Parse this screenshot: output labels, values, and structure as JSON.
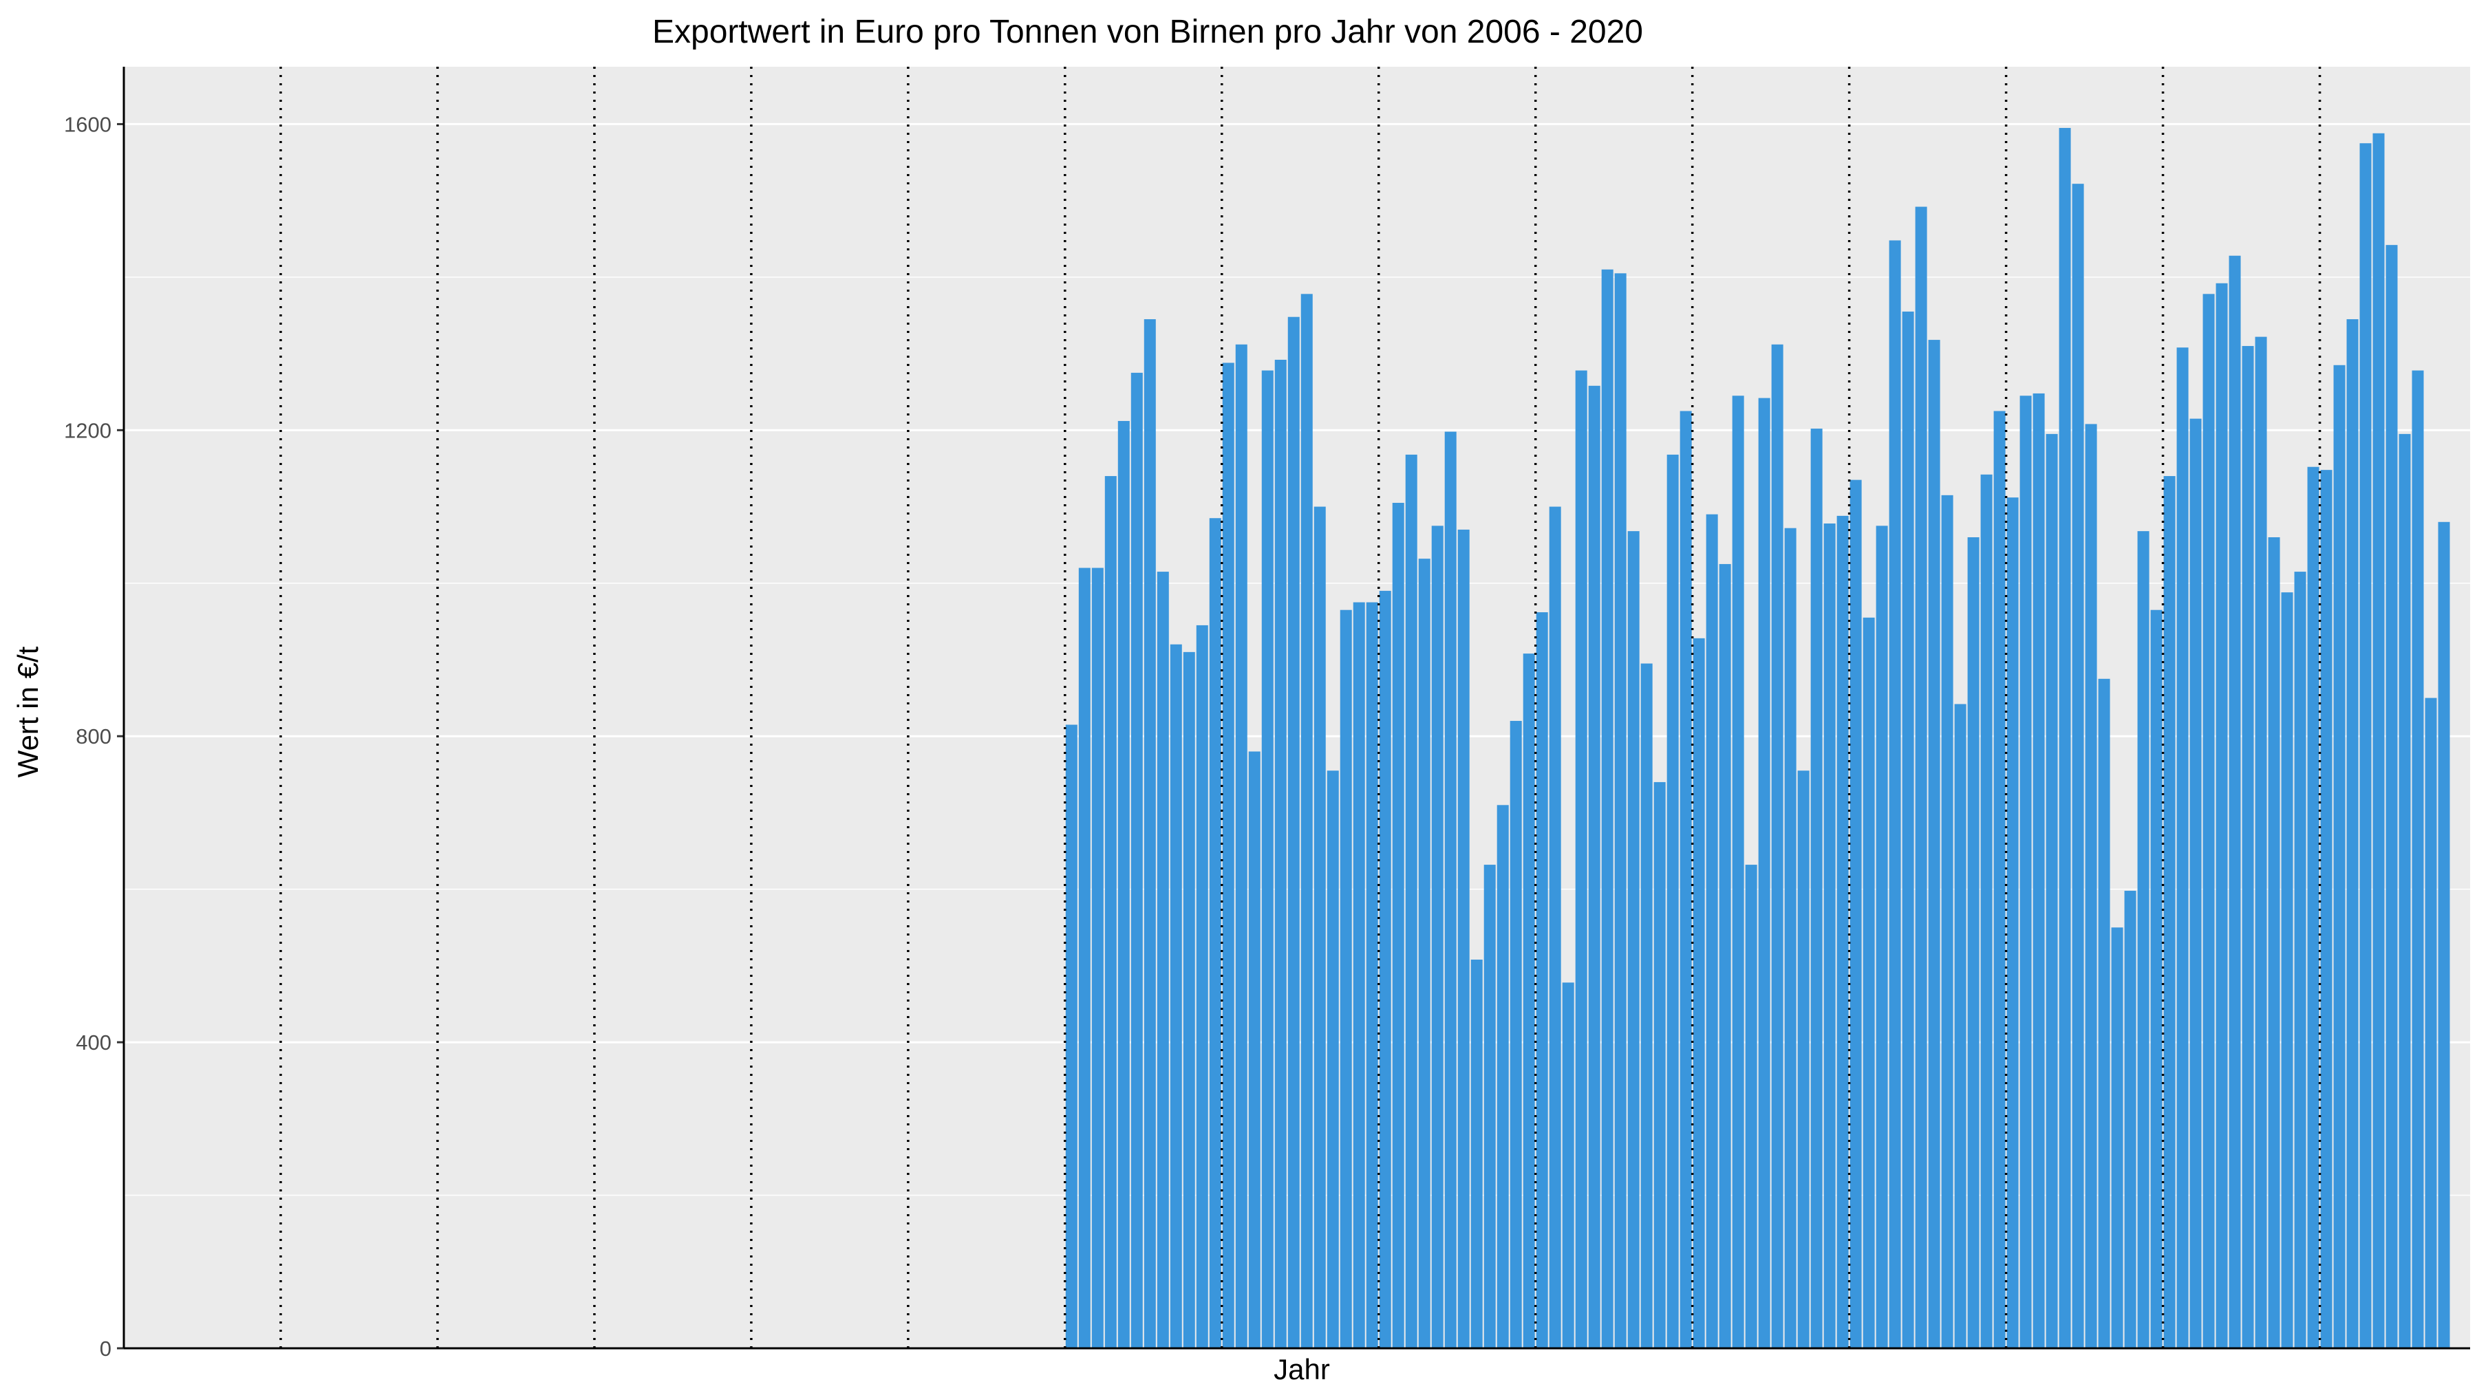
{
  "chart_data": {
    "type": "bar",
    "title": "Exportwert in Euro pro Tonnen von Birnen pro Jahr von 2006 - 2020",
    "xlabel": "Jahr",
    "ylabel": "Wert in €/t",
    "ylim": [
      0,
      1675
    ],
    "yticks": [
      0,
      400,
      800,
      1200,
      1600
    ],
    "grid": true,
    "legend": "none",
    "x_vlines_dotted": true,
    "year_separators": 15,
    "bars_per_year": 12,
    "bar_color": "#3a96dc",
    "panel_color": "#ebebeb",
    "first_bar_month_index": 72,
    "values": [
      815,
      1020,
      1020,
      1140,
      1212,
      1275,
      1345,
      1015,
      920,
      910,
      945,
      1085,
      1288,
      1312,
      780,
      1278,
      1292,
      1348,
      1378,
      1100,
      755,
      965,
      975,
      975,
      990,
      1105,
      1168,
      1032,
      1075,
      1198,
      1070,
      508,
      632,
      710,
      820,
      908,
      962,
      1100,
      478,
      1278,
      1258,
      1410,
      1405,
      1068,
      895,
      740,
      1168,
      1225,
      928,
      1090,
      1025,
      1245,
      632,
      1242,
      1312,
      1072,
      755,
      1202,
      1078,
      1088,
      1135,
      955,
      1075,
      1448,
      1355,
      1492,
      1318,
      1115,
      842,
      1060,
      1142,
      1225,
      1112,
      1245,
      1248,
      1195,
      1595,
      1522,
      1208,
      875,
      550,
      598,
      1068,
      965,
      1140,
      1308,
      1215,
      1378,
      1392,
      1428,
      1310,
      1322,
      1060,
      988,
      1015,
      1152,
      1148,
      1285,
      1345,
      1575,
      1588,
      1442,
      1195,
      1278,
      850,
      1080
    ]
  }
}
